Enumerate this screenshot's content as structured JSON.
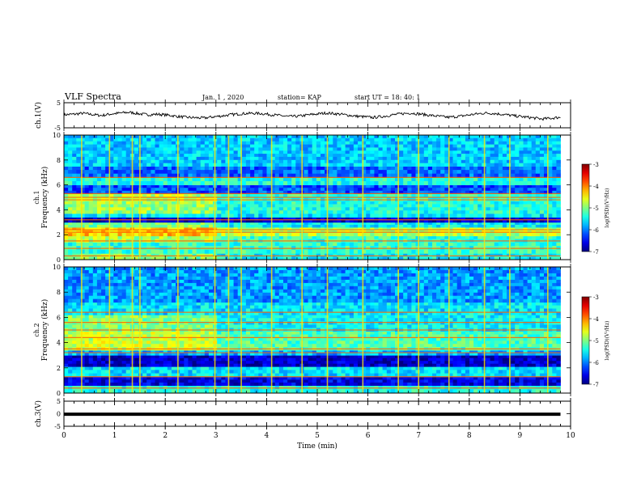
{
  "header": {
    "title": "VLF Spectra",
    "date": "Jan. 1 , 2020",
    "station": "station= KAP",
    "start": "start UT = 18: 40: 1"
  },
  "chart_data": [
    {
      "id": "ch1-waveform",
      "type": "line",
      "ylabel": "ch.1(V)",
      "ylim": [
        -5,
        5
      ],
      "yticks": [
        "5",
        "-5"
      ],
      "xlim": [
        0,
        10
      ],
      "x_end": 9.8,
      "series": [
        {
          "values": [
            0.2,
            0.4,
            0.8,
            0.3,
            -0.1,
            0.5,
            0.9,
            1.2,
            0.6,
            0.2,
            0.4,
            0.1,
            -0.4,
            -0.8,
            -1.0,
            -1.1,
            -0.6,
            -0.2,
            0.3,
            0.6,
            0.8,
            0.7,
            0.3,
            -0.1,
            -0.5,
            -0.4,
            0.1,
            0.5,
            0.9,
            0.6,
            0.2,
            -0.3,
            -0.6,
            -0.9,
            -0.5,
            0.1,
            0.6,
            0.9,
            0.5,
            0.0,
            -0.4,
            -0.8,
            -0.5,
            0.0,
            0.5,
            0.9,
            0.7,
            0.3,
            -0.2,
            -0.6,
            -1.0,
            -1.5,
            -1.2,
            -0.8
          ]
        }
      ]
    },
    {
      "id": "ch1-spectrogram",
      "type": "heatmap",
      "ylabel": "ch.1 Frequency (kHz)",
      "ylim": [
        0,
        10
      ],
      "yticks": [
        "0",
        "2",
        "4",
        "6",
        "8",
        "10"
      ],
      "xlim": [
        0,
        10
      ],
      "x_end": 9.8,
      "colorbar": {
        "label": "log(PSD)(V²/Hz)",
        "range": [
          -7,
          -3
        ],
        "ticks": [
          "-3",
          "-4",
          "-5",
          "-6",
          "-7"
        ]
      },
      "bands": [
        {
          "f": [
            0,
            0.5
          ],
          "level": -5.0
        },
        {
          "f": [
            0.5,
            1.4
          ],
          "level": -5.3
        },
        {
          "f": [
            1.4,
            1.9
          ],
          "level": -4.8
        },
        {
          "f": [
            1.9,
            2.6
          ],
          "level": -4.3
        },
        {
          "f": [
            2.6,
            3.0
          ],
          "level": -5.0
        },
        {
          "f": [
            3.0,
            3.4
          ],
          "level": -6.7
        },
        {
          "f": [
            3.4,
            3.7
          ],
          "level": -5.6
        },
        {
          "f": [
            3.7,
            4.7
          ],
          "level": -4.9
        },
        {
          "f": [
            4.7,
            5.3
          ],
          "level": -4.8
        },
        {
          "f": [
            5.3,
            6.0
          ],
          "level": -6.2
        },
        {
          "f": [
            6.0,
            6.6
          ],
          "level": -5.4
        },
        {
          "f": [
            6.6,
            7.5
          ],
          "level": -6.1
        },
        {
          "f": [
            7.5,
            10.0
          ],
          "level": -5.7
        }
      ],
      "lines_khz": [
        0.3,
        0.9,
        1.5,
        2.2,
        2.4,
        3.2,
        4.8,
        5.0,
        5.3,
        6.6
      ],
      "bursts_min": [
        0.35,
        0.9,
        1.35,
        1.5,
        2.25,
        2.98,
        3.25,
        3.5,
        4.1,
        4.7,
        5.2,
        5.9,
        6.6,
        7.0,
        7.6,
        8.3,
        8.8,
        9.55
      ]
    },
    {
      "id": "ch2-spectrogram",
      "type": "heatmap",
      "ylabel": "ch.2 Frequency (kHz)",
      "ylim": [
        0,
        10
      ],
      "yticks": [
        "0",
        "2",
        "4",
        "6",
        "8",
        "10"
      ],
      "xlim": [
        0,
        10
      ],
      "x_end": 9.8,
      "colorbar": {
        "label": "log(PSD)(V²/Hz)",
        "range": [
          -7,
          -3
        ],
        "ticks": [
          "-3",
          "-4",
          "-5",
          "-6",
          "-7"
        ]
      },
      "bands": [
        {
          "f": [
            0,
            0.6
          ],
          "level": -5.4
        },
        {
          "f": [
            0.6,
            1.3
          ],
          "level": -6.6
        },
        {
          "f": [
            1.3,
            2.1
          ],
          "level": -5.6
        },
        {
          "f": [
            2.1,
            3.0
          ],
          "level": -6.7
        },
        {
          "f": [
            3.0,
            3.4
          ],
          "level": -5.8
        },
        {
          "f": [
            3.4,
            4.9
          ],
          "level": -4.7
        },
        {
          "f": [
            4.9,
            6.2
          ],
          "level": -5.0
        },
        {
          "f": [
            6.2,
            7.2
          ],
          "level": -5.6
        },
        {
          "f": [
            7.2,
            10.0
          ],
          "level": -5.9
        }
      ],
      "lines_khz": [
        0.4,
        1.3,
        3.2,
        3.5,
        4.4,
        5.0,
        5.6,
        6.4
      ],
      "bursts_min": [
        0.35,
        0.9,
        1.35,
        1.5,
        2.25,
        2.98,
        3.25,
        3.5,
        4.1,
        4.7,
        5.2,
        5.9,
        6.6,
        7.0,
        7.6,
        8.3,
        8.8,
        9.55
      ]
    },
    {
      "id": "ch3-waveform",
      "type": "line",
      "ylabel": "ch.3(V)",
      "ylim": [
        -5,
        5
      ],
      "yticks": [
        "5",
        "0",
        "-5"
      ],
      "xlim": [
        0,
        10
      ],
      "x_end": 9.8,
      "series": [
        {
          "values": [
            -0.2,
            -0.2
          ]
        }
      ]
    }
  ],
  "xaxis": {
    "label": "Time (min)",
    "ticks": [
      "0",
      "1",
      "2",
      "3",
      "4",
      "5",
      "6",
      "7",
      "8",
      "9",
      "10"
    ]
  }
}
